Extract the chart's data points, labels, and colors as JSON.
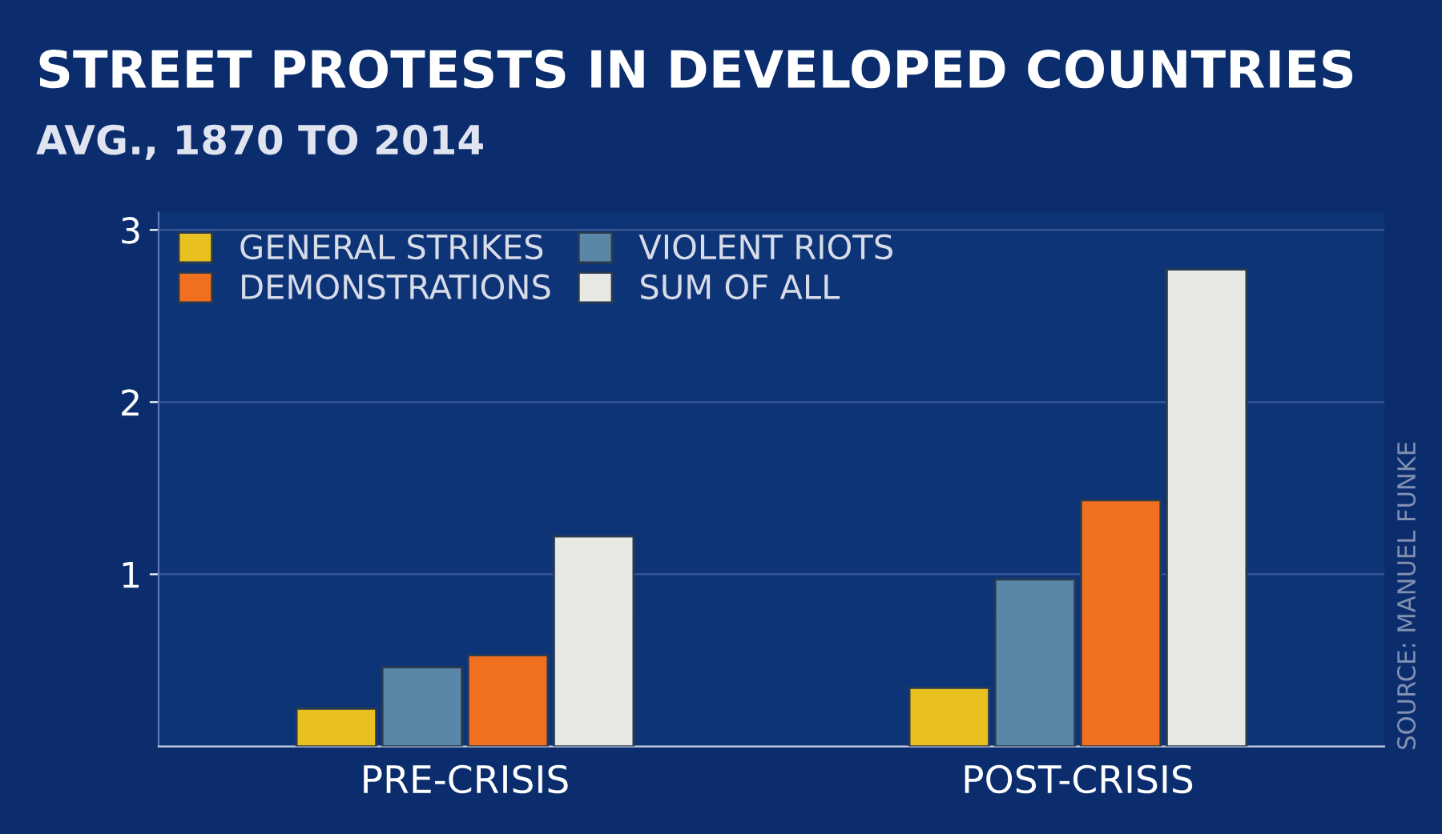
{
  "chart_data": {
    "type": "bar",
    "title": "STREET PROTESTS IN DEVELOPED COUNTRIES",
    "subtitle": "AVG., 1870 TO 2014",
    "categories": [
      "PRE-CRISIS",
      "POST-CRISIS"
    ],
    "series": [
      {
        "name": "GENERAL STRIKES",
        "color": "#e8c020",
        "values": [
          0.22,
          0.34
        ]
      },
      {
        "name": "VIOLENT RIOTS",
        "color": "#5a87a8",
        "values": [
          0.46,
          0.97
        ]
      },
      {
        "name": "DEMONSTRATIONS",
        "color": "#f07020",
        "values": [
          0.53,
          1.43
        ]
      },
      {
        "name": "SUM OF ALL",
        "color": "#e8e8e4",
        "values": [
          1.22,
          2.77
        ]
      }
    ],
    "ylim": [
      0,
      3.1
    ],
    "yticks": [
      1,
      2,
      3
    ],
    "grid": "y",
    "legend": "top left",
    "annotations": [
      "SOURCE: MANUEL FUNKE"
    ]
  }
}
